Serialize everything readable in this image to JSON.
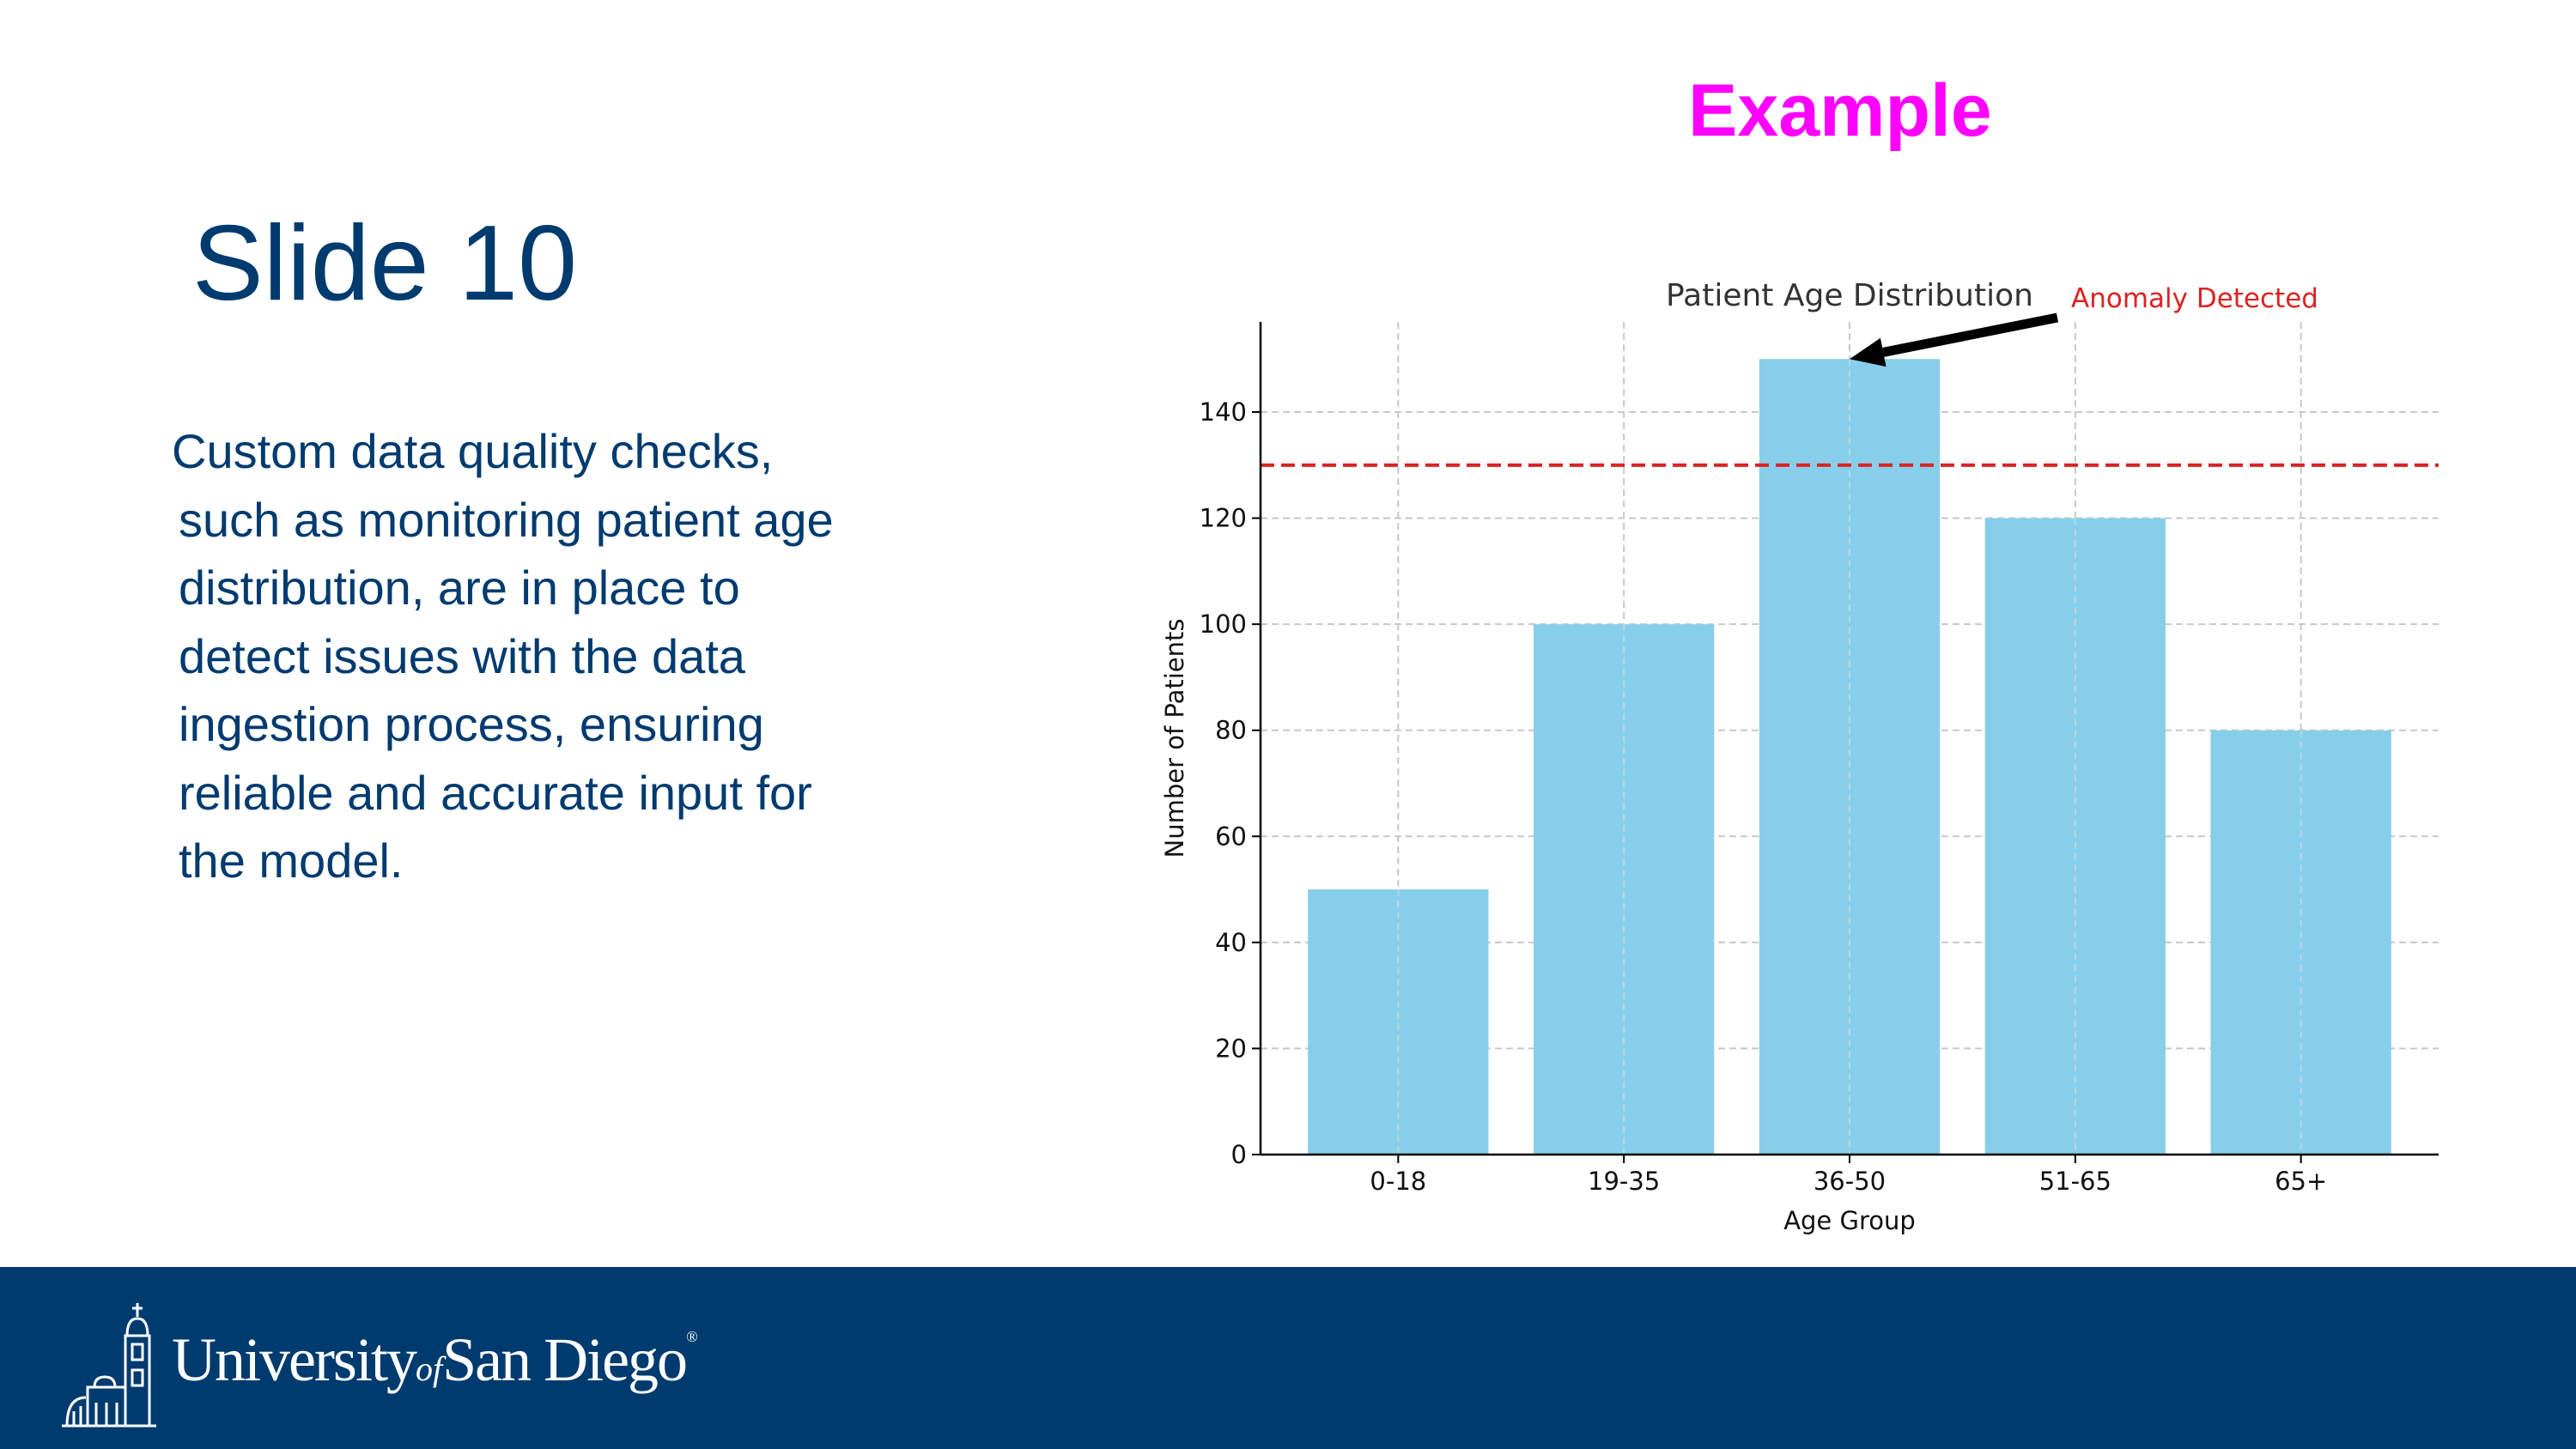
{
  "slide": {
    "title": "Slide 10",
    "example_label": "Example",
    "body_lines": [
      "Custom data quality checks,",
      "such as monitoring patient age",
      "distribution, are in place to",
      "detect issues with the data",
      "ingestion process, ensuring",
      "reliable and accurate input for",
      "the model."
    ]
  },
  "footer": {
    "logo_university": "University",
    "logo_of": "of",
    "logo_place": "San Diego",
    "logo_reg": "®"
  },
  "colors": {
    "title": "#003b70",
    "example": "#ff00ff",
    "bar": "#87ceeb",
    "threshold": "#dd2222",
    "footer_bg": "#003b70"
  },
  "chart_data": {
    "type": "bar",
    "title": "Patient Age Distribution",
    "xlabel": "Age Group",
    "ylabel": "Number of Patients",
    "categories": [
      "0-18",
      "19-35",
      "36-50",
      "51-65",
      "65+"
    ],
    "values": [
      50,
      100,
      150,
      120,
      80
    ],
    "ylim": [
      0,
      157
    ],
    "yticks": [
      0,
      20,
      40,
      60,
      80,
      100,
      120,
      140
    ],
    "grid": true,
    "threshold": 130,
    "annotation": {
      "text": "Anomaly Detected",
      "target_category": "36-50",
      "target_value": 150
    }
  }
}
